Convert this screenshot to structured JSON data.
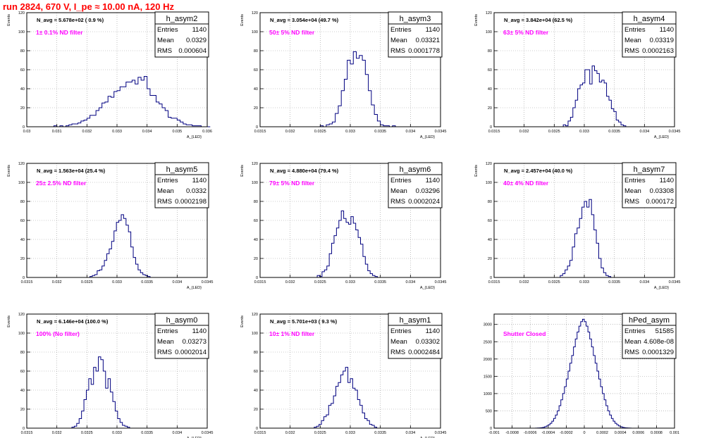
{
  "title": "run 2824,   670 V, I_pe ≈ 10.00 nA, 120 Hz",
  "chart_data": [
    {
      "type": "bar",
      "name": "h_asym2",
      "stats": {
        "entries": "1140",
        "mean": "0.0329",
        "rms": "0.000604"
      },
      "navg": "N_avg = 5.678e+02 ( 0.9 %)",
      "annotation": "1± 0.1% ND filter",
      "ylabel": "Events",
      "xlabel": "A_{LED}",
      "xlim": [
        0.03,
        0.036
      ],
      "ylim": [
        0,
        120
      ],
      "xticks": [
        0.03,
        0.031,
        0.032,
        0.033,
        0.034,
        0.035,
        0.036
      ],
      "xtick_labels": [
        "0.03",
        "0.031",
        "0.032",
        "0.033",
        "0.034",
        "0.035",
        "0.036"
      ],
      "yticks": [
        0,
        20,
        40,
        60,
        80,
        100,
        120
      ],
      "grid": true,
      "bin_start": 0.0305,
      "bin_width": 0.0001,
      "values": [
        0,
        0,
        0,
        0,
        1,
        0,
        1,
        0,
        1,
        2,
        3,
        3,
        4,
        6,
        7,
        9,
        12,
        12,
        17,
        20,
        25,
        26,
        32,
        31,
        37,
        38,
        42,
        42,
        47,
        47,
        49,
        45,
        52,
        49,
        53,
        40,
        33,
        33,
        26,
        24,
        20,
        17,
        10,
        9,
        9,
        7,
        5,
        3,
        2,
        2,
        1,
        1,
        1,
        0,
        0,
        0
      ]
    },
    {
      "type": "bar",
      "name": "h_asym3",
      "stats": {
        "entries": "1140",
        "mean": "0.03321",
        "rms": "0.0001778"
      },
      "navg": "N_avg = 3.054e+04 (49.7 %)",
      "annotation": "50± 5% ND filter",
      "ylabel": "Events",
      "xlabel": "A_{LED}",
      "xlim": [
        0.0315,
        0.0345
      ],
      "ylim": [
        0,
        120
      ],
      "xticks": [
        0.0315,
        0.032,
        0.0325,
        0.033,
        0.0335,
        0.034,
        0.0345
      ],
      "xtick_labels": [
        "0.0315",
        "0.032",
        "0.0325",
        "0.033",
        "0.0335",
        "0.034",
        "0.0345"
      ],
      "yticks": [
        0,
        20,
        40,
        60,
        80,
        100,
        120
      ],
      "grid": true,
      "bin_start": 0.0325,
      "bin_width": 5e-05,
      "values": [
        1,
        0,
        2,
        3,
        5,
        14,
        22,
        38,
        50,
        70,
        66,
        79,
        72,
        75,
        70,
        55,
        38,
        23,
        13,
        6,
        2,
        1,
        1,
        0,
        1
      ]
    },
    {
      "type": "bar",
      "name": "h_asym4",
      "stats": {
        "entries": "1140",
        "mean": "0.03319",
        "rms": "0.0002163"
      },
      "navg": "N_avg = 3.842e+04 (62.5 %)",
      "annotation": "63± 5% ND filter",
      "ylabel": "Events",
      "xlabel": "A_{LED}",
      "xlim": [
        0.0315,
        0.0345
      ],
      "ylim": [
        0,
        120
      ],
      "xticks": [
        0.0315,
        0.032,
        0.0325,
        0.033,
        0.0335,
        0.034,
        0.0345
      ],
      "xtick_labels": [
        "0.0315",
        "0.032",
        "0.0325",
        "0.033",
        "0.0335",
        "0.034",
        "0.0345"
      ],
      "yticks": [
        0,
        20,
        40,
        60,
        80,
        100,
        120
      ],
      "grid": true,
      "bin_start": 0.03265,
      "bin_width": 4e-05,
      "values": [
        2,
        1,
        6,
        10,
        20,
        28,
        40,
        44,
        46,
        60,
        60,
        45,
        64,
        59,
        56,
        47,
        49,
        46,
        32,
        28,
        19,
        16,
        7,
        5,
        2,
        1
      ]
    },
    {
      "type": "bar",
      "name": "h_asym5",
      "stats": {
        "entries": "1140",
        "mean": "0.0332",
        "rms": "0.0002198"
      },
      "navg": "N_avg = 1.563e+04 (25.4 %)",
      "annotation": "25± 2.5% ND filter",
      "ylabel": "Events",
      "xlabel": "A_{LED}",
      "xlim": [
        0.0315,
        0.0345
      ],
      "ylim": [
        0,
        120
      ],
      "xticks": [
        0.0315,
        0.032,
        0.0325,
        0.033,
        0.0335,
        0.034,
        0.0345
      ],
      "xtick_labels": [
        "0.0315",
        "0.032",
        "0.0325",
        "0.033",
        "0.0335",
        "0.034",
        "0.0345"
      ],
      "yticks": [
        0,
        20,
        40,
        60,
        80,
        100,
        120
      ],
      "grid": true,
      "bin_start": 0.03255,
      "bin_width": 4e-05,
      "values": [
        1,
        2,
        3,
        7,
        8,
        12,
        18,
        25,
        30,
        38,
        49,
        58,
        60,
        66,
        62,
        55,
        48,
        32,
        21,
        14,
        8,
        5,
        3,
        2,
        1
      ]
    },
    {
      "type": "bar",
      "name": "h_asym6",
      "stats": {
        "entries": "1140",
        "mean": "0.03296",
        "rms": "0.0002024"
      },
      "navg": "N_avg = 4.880e+04 (79.4 %)",
      "annotation": "79± 5% ND filter",
      "ylabel": "Events",
      "xlabel": "A_{LED}",
      "xlim": [
        0.0315,
        0.0345
      ],
      "ylim": [
        0,
        120
      ],
      "xticks": [
        0.0315,
        0.032,
        0.0325,
        0.033,
        0.0335,
        0.034,
        0.0345
      ],
      "xtick_labels": [
        "0.0315",
        "0.032",
        "0.0325",
        "0.033",
        "0.0335",
        "0.034",
        "0.0345"
      ],
      "yticks": [
        0,
        20,
        40,
        60,
        80,
        100,
        120
      ],
      "grid": true,
      "bin_start": 0.03245,
      "bin_width": 4e-05,
      "values": [
        2,
        1,
        6,
        8,
        12,
        25,
        36,
        44,
        52,
        60,
        70,
        62,
        58,
        56,
        64,
        57,
        50,
        42,
        35,
        22,
        14,
        7,
        4,
        2,
        1
      ]
    },
    {
      "type": "bar",
      "name": "h_asym7",
      "stats": {
        "entries": "1140",
        "mean": "0.03308",
        "rms": "0.000172"
      },
      "navg": "N_avg = 2.457e+04 (40.0 %)",
      "annotation": "40± 4% ND filter",
      "ylabel": "Events",
      "xlabel": "A_{LED}",
      "xlim": [
        0.0315,
        0.0345
      ],
      "ylim": [
        0,
        120
      ],
      "xticks": [
        0.0315,
        0.032,
        0.0325,
        0.033,
        0.0335,
        0.034,
        0.0345
      ],
      "xtick_labels": [
        "0.0315",
        "0.032",
        "0.0325",
        "0.033",
        "0.0335",
        "0.034",
        "0.0345"
      ],
      "yticks": [
        0,
        20,
        40,
        60,
        80,
        100,
        120
      ],
      "grid": true,
      "bin_start": 0.0326,
      "bin_width": 4e-05,
      "values": [
        2,
        4,
        8,
        12,
        18,
        32,
        46,
        52,
        62,
        74,
        80,
        74,
        82,
        66,
        50,
        36,
        20,
        10,
        5,
        2,
        1
      ]
    },
    {
      "type": "bar",
      "name": "h_asym0",
      "stats": {
        "entries": "1140",
        "mean": "0.03273",
        "rms": "0.0002014"
      },
      "navg": "N_avg = 6.146e+04 (100.0 %)",
      "annotation": "100% (No filter)",
      "ylabel": "Events",
      "xlabel": "A_{LED}",
      "xlim": [
        0.0315,
        0.0345
      ],
      "ylim": [
        0,
        120
      ],
      "xticks": [
        0.0315,
        0.032,
        0.0325,
        0.033,
        0.0335,
        0.034,
        0.0345
      ],
      "xtick_labels": [
        "0.0315",
        "0.032",
        "0.0325",
        "0.033",
        "0.0335",
        "0.034",
        "0.0345"
      ],
      "yticks": [
        0,
        20,
        40,
        60,
        80,
        100,
        120
      ],
      "grid": true,
      "bin_start": 0.03225,
      "bin_width": 4e-05,
      "values": [
        1,
        2,
        5,
        10,
        18,
        30,
        40,
        52,
        46,
        64,
        60,
        75,
        72,
        60,
        42,
        52,
        38,
        28,
        18,
        10,
        6,
        3,
        2,
        1
      ]
    },
    {
      "type": "bar",
      "name": "h_asym1",
      "stats": {
        "entries": "1140",
        "mean": "0.03302",
        "rms": "0.0002484"
      },
      "navg": "N_avg = 5.701e+03 ( 9.3 %)",
      "annotation": "10± 1% ND filter",
      "ylabel": "Events",
      "xlabel": "A_{LED}",
      "xlim": [
        0.0315,
        0.0345
      ],
      "ylim": [
        0,
        120
      ],
      "xticks": [
        0.0315,
        0.032,
        0.0325,
        0.033,
        0.0335,
        0.034,
        0.0345
      ],
      "xtick_labels": [
        "0.0315",
        "0.032",
        "0.0325",
        "0.033",
        "0.0335",
        "0.034",
        "0.0345"
      ],
      "yticks": [
        0,
        20,
        40,
        60,
        80,
        100,
        120
      ],
      "grid": true,
      "bin_start": 0.0324,
      "bin_width": 4e-05,
      "values": [
        1,
        2,
        4,
        8,
        12,
        14,
        24,
        26,
        34,
        44,
        48,
        56,
        60,
        64,
        48,
        52,
        42,
        40,
        30,
        24,
        16,
        10,
        8,
        4,
        3,
        1
      ]
    },
    {
      "type": "bar",
      "name": "hPed_asym",
      "stats": {
        "entries": "51585",
        "mean": "4.608e-08",
        "rms": "0.0001329"
      },
      "annotation": "Shutter Closed",
      "ylabel": "",
      "xlabel": "",
      "xlim": [
        -0.001,
        0.001
      ],
      "ylim": [
        0,
        3300
      ],
      "xticks": [
        -0.001,
        -0.0008,
        -0.0006,
        -0.0004,
        -0.0002,
        0,
        0.0002,
        0.0004,
        0.0006,
        0.0008,
        0.001
      ],
      "xtick_labels": [
        "-0.001",
        "-0.0008",
        "-0.0006",
        "-0.0004",
        "-0.0002",
        "0",
        "0.0002",
        "0.0004",
        "0.0006",
        "0.0008",
        "0.001"
      ],
      "yticks": [
        0,
        500,
        1000,
        1500,
        2000,
        2500,
        3000
      ],
      "grid": true,
      "bin_start": -0.00056,
      "bin_width": 2e-05,
      "values": [
        1,
        2,
        4,
        8,
        14,
        24,
        40,
        64,
        96,
        140,
        200,
        280,
        380,
        500,
        650,
        820,
        1000,
        1200,
        1420,
        1650,
        1880,
        2100,
        2350,
        2580,
        2780,
        2950,
        3080,
        3150,
        3080,
        2950,
        2780,
        2580,
        2350,
        2100,
        1880,
        1650,
        1420,
        1200,
        1000,
        820,
        650,
        500,
        380,
        280,
        200,
        140,
        96,
        64,
        40,
        24,
        14,
        8,
        4,
        2,
        1
      ]
    }
  ]
}
